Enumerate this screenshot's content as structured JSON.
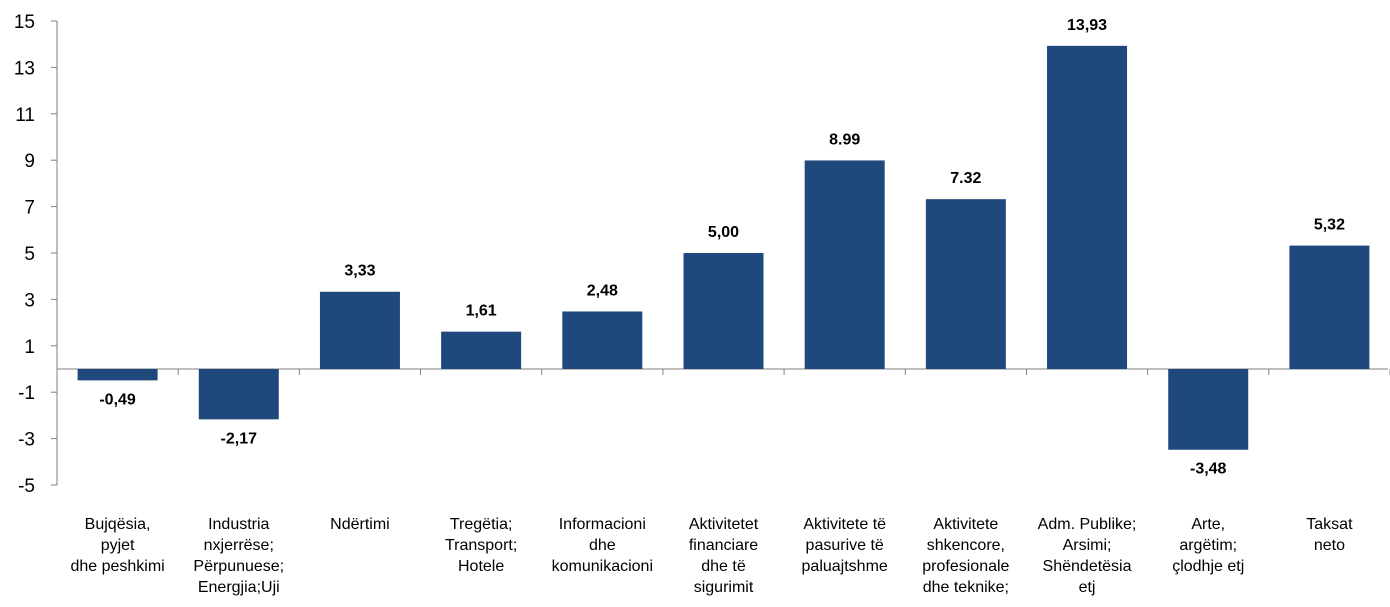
{
  "chart_data": {
    "type": "bar",
    "title": "",
    "xlabel": "",
    "ylabel": "",
    "ylim": [
      -5,
      15
    ],
    "yticks": [
      "15",
      "13",
      "11",
      "9",
      "7",
      "5",
      "3",
      "1",
      "-1",
      "-3",
      "-5"
    ],
    "grid": false,
    "legend": "none",
    "bar_color": "#1f497d",
    "categories": [
      [
        "Bujqësia,",
        "pyjet",
        "dhe peshkimi"
      ],
      [
        "Industria",
        "nxjerrëse;",
        "Përpunuese;",
        "Energjia;Uji"
      ],
      [
        "Ndërtimi"
      ],
      [
        "Tregëtia;",
        "Transport;",
        "Hotele"
      ],
      [
        "Informacioni",
        "dhe",
        "komunikacioni"
      ],
      [
        "Aktivitetet",
        "financiare",
        "dhe të",
        "sigurimit"
      ],
      [
        "Aktivitete të",
        "pasurive të",
        "paluajtshme"
      ],
      [
        "Aktivitete",
        "shkencore,",
        "profesionale",
        "dhe teknike;"
      ],
      [
        "Adm. Publike;",
        "Arsimi;",
        "Shëndetësia",
        "etj"
      ],
      [
        "Arte,",
        "argëtim;",
        "çlodhje etj"
      ],
      [
        "Taksat",
        "neto"
      ]
    ],
    "values": [
      -0.49,
      -2.17,
      3.33,
      1.61,
      2.48,
      5.0,
      8.99,
      7.32,
      13.93,
      -3.48,
      5.32
    ],
    "value_labels": [
      "-0,49",
      "-2,17",
      "3,33",
      "1,61",
      "2,48",
      "5,00",
      "8.99",
      "7.32",
      "13,93",
      "-3,48",
      "5,32"
    ]
  }
}
